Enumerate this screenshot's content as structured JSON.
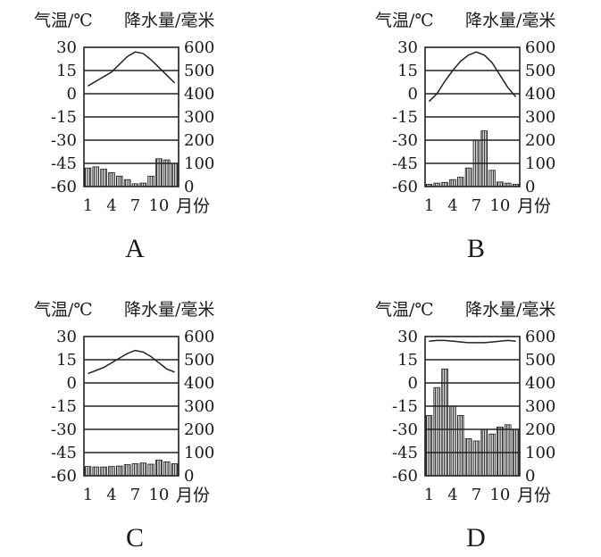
{
  "chart_data": [
    {
      "type": "bar+line",
      "title": "A",
      "temp_label": "气温/℃",
      "precip_label": "降水量/毫米",
      "month_label": "月份",
      "x": [
        1,
        2,
        3,
        4,
        5,
        6,
        7,
        8,
        9,
        10,
        11,
        12
      ],
      "x_ticks": [
        "1",
        "4",
        "7",
        "10"
      ],
      "temp_ticks": [
        "30",
        "15",
        "0",
        "-15",
        "-30",
        "-45",
        "-60"
      ],
      "precip_ticks": [
        "600",
        "500",
        "400",
        "300",
        "200",
        "100",
        "0"
      ],
      "temp_range": [
        -60,
        30
      ],
      "precip_range": [
        0,
        600
      ],
      "temperature": [
        5,
        8,
        11,
        14,
        19,
        24,
        27,
        26,
        22,
        17,
        12,
        7
      ],
      "precipitation": [
        80,
        85,
        75,
        60,
        45,
        30,
        12,
        15,
        45,
        120,
        115,
        100
      ]
    },
    {
      "type": "bar+line",
      "title": "B",
      "temp_label": "气温/℃",
      "precip_label": "降水量/毫米",
      "month_label": "月份",
      "x": [
        1,
        2,
        3,
        4,
        5,
        6,
        7,
        8,
        9,
        10,
        11,
        12
      ],
      "x_ticks": [
        "1",
        "4",
        "7",
        "10"
      ],
      "temp_ticks": [
        "30",
        "15",
        "0",
        "-15",
        "-30",
        "-45",
        "-60"
      ],
      "precip_ticks": [
        "600",
        "500",
        "400",
        "300",
        "200",
        "100",
        "0"
      ],
      "temp_range": [
        -60,
        30
      ],
      "precip_range": [
        0,
        600
      ],
      "temperature": [
        -5,
        0,
        8,
        15,
        21,
        25,
        27,
        25,
        20,
        12,
        4,
        -2
      ],
      "precipitation": [
        10,
        15,
        18,
        30,
        40,
        80,
        200,
        240,
        70,
        20,
        15,
        10
      ]
    },
    {
      "type": "bar+line",
      "title": "C",
      "temp_label": "气温/℃",
      "precip_label": "降水量/毫米",
      "month_label": "月份",
      "x": [
        1,
        2,
        3,
        4,
        5,
        6,
        7,
        8,
        9,
        10,
        11,
        12
      ],
      "x_ticks": [
        "1",
        "4",
        "7",
        "10"
      ],
      "temp_ticks": [
        "30",
        "15",
        "0",
        "-15",
        "-30",
        "-45",
        "-60"
      ],
      "precip_ticks": [
        "600",
        "500",
        "400",
        "300",
        "200",
        "100",
        "0"
      ],
      "temp_range": [
        -60,
        30
      ],
      "precip_range": [
        0,
        600
      ],
      "temperature": [
        6,
        8,
        10,
        13,
        16,
        19,
        21,
        20,
        17,
        13,
        9,
        7
      ],
      "precipitation": [
        40,
        38,
        38,
        40,
        42,
        48,
        52,
        55,
        50,
        68,
        60,
        52
      ]
    },
    {
      "type": "bar+line",
      "title": "D",
      "temp_label": "气温/℃",
      "precip_label": "降水量/毫米",
      "month_label": "月份",
      "x": [
        1,
        2,
        3,
        4,
        5,
        6,
        7,
        8,
        9,
        10,
        11,
        12
      ],
      "x_ticks": [
        "1",
        "4",
        "7",
        "10"
      ],
      "temp_ticks": [
        "30",
        "15",
        "0",
        "-15",
        "-30",
        "-45",
        "-60"
      ],
      "precip_ticks": [
        "600",
        "500",
        "400",
        "300",
        "200",
        "100",
        "0"
      ],
      "temp_range": [
        -60,
        30
      ],
      "precip_range": [
        0,
        600
      ],
      "temperature": [
        27,
        27.5,
        27.5,
        27,
        26.5,
        26,
        26,
        26,
        26.5,
        27,
        27.5,
        27
      ],
      "precipitation": [
        260,
        380,
        460,
        300,
        260,
        160,
        150,
        200,
        180,
        210,
        220,
        200
      ]
    }
  ]
}
